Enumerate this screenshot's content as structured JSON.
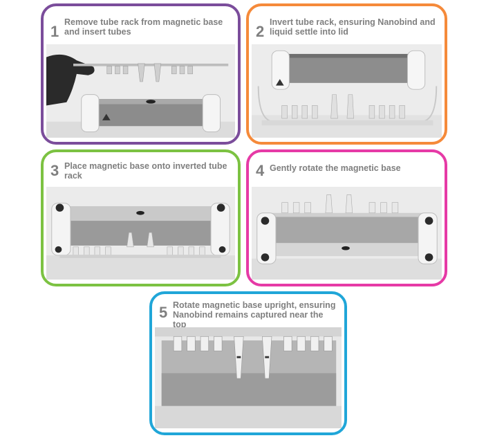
{
  "steps": [
    {
      "number": "1",
      "caption": "Remove tube rack from magnetic base and insert tubes"
    },
    {
      "number": "2",
      "caption": "Invert tube rack, ensuring Nanobind and liquid settle into lid"
    },
    {
      "number": "3",
      "caption": "Place magnetic base onto inverted tube rack"
    },
    {
      "number": "4",
      "caption": "Gently rotate the magnetic base"
    },
    {
      "number": "5",
      "caption": "Rotate magnetic base upright, ensuring Nanobind remains captured near the top"
    }
  ],
  "colors": {
    "step1": "#7b4d9b",
    "step2": "#f58a3a",
    "step3": "#7cc242",
    "step4": "#e63aa6",
    "step5": "#20a6d8"
  }
}
